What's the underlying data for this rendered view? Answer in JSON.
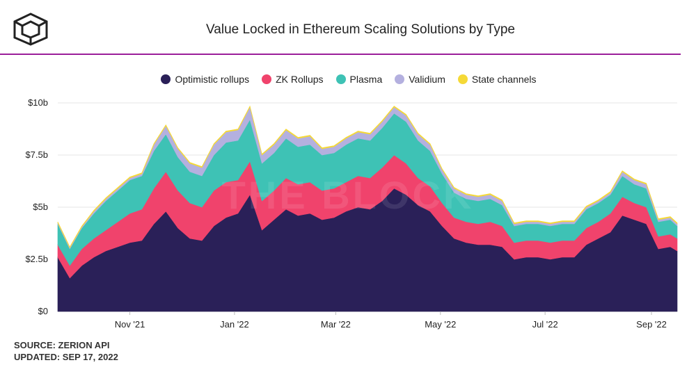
{
  "header": {
    "title": "Value Locked in Ethereum Scaling Solutions by Type",
    "logo_icon": "cube-logo-icon"
  },
  "colors": {
    "accent_rule": "#9b1e9a",
    "grid": "#e6e6e6"
  },
  "watermark": "THE BLOCK",
  "footer": {
    "source": "SOURCE: ZERION API",
    "updated": "UPDATED: SEP 17, 2022"
  },
  "chart_data": {
    "type": "area",
    "stacked": true,
    "title": "Value Locked in Ethereum Scaling Solutions by Type",
    "xlabel": "",
    "ylabel": "",
    "x_range": [
      "2021-09-20",
      "2022-09-16"
    ],
    "ylim": [
      0,
      10
    ],
    "y_unit": "$ billions",
    "yticks": [
      0,
      2.5,
      5,
      7.5,
      10
    ],
    "ytick_labels": [
      "$0",
      "$2.5b",
      "$5b",
      "$7.5b",
      "$10b"
    ],
    "xticks": [
      "2021-11-01",
      "2022-01-01",
      "2022-03-01",
      "2022-05-01",
      "2022-07-01",
      "2022-09-01"
    ],
    "xtick_labels": [
      "Nov '21",
      "Jan '22",
      "Mar '22",
      "May '22",
      "Jul '22",
      "Sep '22"
    ],
    "grid": true,
    "legend_position": "top-center",
    "x": [
      "2021-09-20",
      "2021-09-27",
      "2021-10-04",
      "2021-10-11",
      "2021-10-18",
      "2021-10-25",
      "2021-11-01",
      "2021-11-08",
      "2021-11-15",
      "2021-11-22",
      "2021-11-29",
      "2021-12-06",
      "2021-12-13",
      "2021-12-20",
      "2021-12-27",
      "2022-01-03",
      "2022-01-10",
      "2022-01-17",
      "2022-01-24",
      "2022-01-31",
      "2022-02-07",
      "2022-02-14",
      "2022-02-21",
      "2022-02-28",
      "2022-03-07",
      "2022-03-14",
      "2022-03-21",
      "2022-03-28",
      "2022-04-04",
      "2022-04-11",
      "2022-04-18",
      "2022-04-25",
      "2022-05-02",
      "2022-05-09",
      "2022-05-16",
      "2022-05-23",
      "2022-05-30",
      "2022-06-06",
      "2022-06-13",
      "2022-06-20",
      "2022-06-27",
      "2022-07-04",
      "2022-07-11",
      "2022-07-18",
      "2022-07-25",
      "2022-08-01",
      "2022-08-08",
      "2022-08-15",
      "2022-08-22",
      "2022-08-29",
      "2022-09-05",
      "2022-09-12",
      "2022-09-16"
    ],
    "series": [
      {
        "name": "Optimistic rollups",
        "color": "#2a2058",
        "values": [
          2.6,
          1.6,
          2.2,
          2.6,
          2.9,
          3.1,
          3.3,
          3.4,
          4.2,
          4.8,
          4.0,
          3.5,
          3.4,
          4.1,
          4.5,
          4.7,
          5.6,
          3.9,
          4.4,
          4.9,
          4.6,
          4.7,
          4.4,
          4.5,
          4.8,
          5.0,
          4.9,
          5.3,
          5.9,
          5.6,
          5.1,
          4.8,
          4.1,
          3.5,
          3.3,
          3.2,
          3.2,
          3.1,
          2.5,
          2.6,
          2.6,
          2.5,
          2.6,
          2.6,
          3.2,
          3.5,
          3.8,
          4.6,
          4.4,
          4.2,
          3.0,
          3.1,
          2.9
        ]
      },
      {
        "name": "ZK Rollups",
        "color": "#f0436c",
        "values": [
          0.6,
          0.6,
          0.8,
          0.9,
          1.0,
          1.2,
          1.4,
          1.5,
          1.7,
          1.9,
          1.8,
          1.7,
          1.6,
          1.7,
          1.7,
          1.6,
          1.6,
          1.4,
          1.4,
          1.5,
          1.5,
          1.5,
          1.4,
          1.4,
          1.4,
          1.5,
          1.5,
          1.6,
          1.6,
          1.5,
          1.3,
          1.2,
          1.1,
          1.0,
          1.0,
          1.0,
          1.1,
          1.0,
          0.8,
          0.8,
          0.8,
          0.8,
          0.8,
          0.8,
          0.8,
          0.8,
          0.9,
          0.9,
          0.8,
          0.8,
          0.6,
          0.6,
          0.6
        ]
      },
      {
        "name": "Plasma",
        "color": "#3ec2b5",
        "values": [
          1.0,
          0.8,
          1.0,
          1.2,
          1.4,
          1.5,
          1.6,
          1.6,
          1.8,
          1.8,
          1.6,
          1.5,
          1.5,
          1.7,
          1.9,
          1.9,
          2.0,
          1.8,
          1.8,
          1.9,
          1.8,
          1.8,
          1.7,
          1.7,
          1.8,
          1.8,
          1.8,
          1.9,
          2.0,
          2.0,
          1.8,
          1.7,
          1.4,
          1.2,
          1.1,
          1.1,
          1.1,
          1.0,
          0.8,
          0.8,
          0.8,
          0.8,
          0.8,
          0.8,
          0.9,
          0.9,
          0.9,
          1.0,
          0.9,
          0.9,
          0.7,
          0.7,
          0.6
        ]
      },
      {
        "name": "Validium",
        "color": "#b4b0df",
        "values": [
          0.05,
          0.05,
          0.05,
          0.1,
          0.1,
          0.1,
          0.1,
          0.1,
          0.3,
          0.4,
          0.4,
          0.4,
          0.4,
          0.5,
          0.5,
          0.5,
          0.6,
          0.4,
          0.4,
          0.4,
          0.4,
          0.4,
          0.3,
          0.3,
          0.3,
          0.3,
          0.3,
          0.3,
          0.3,
          0.3,
          0.3,
          0.3,
          0.2,
          0.2,
          0.2,
          0.2,
          0.2,
          0.2,
          0.1,
          0.1,
          0.1,
          0.1,
          0.1,
          0.1,
          0.1,
          0.1,
          0.1,
          0.2,
          0.2,
          0.2,
          0.1,
          0.1,
          0.1
        ]
      },
      {
        "name": "State channels",
        "color": "#f5d937",
        "values": [
          0.05,
          0.05,
          0.05,
          0.05,
          0.05,
          0.05,
          0.05,
          0.05,
          0.05,
          0.05,
          0.05,
          0.05,
          0.05,
          0.05,
          0.05,
          0.05,
          0.05,
          0.05,
          0.05,
          0.05,
          0.05,
          0.05,
          0.05,
          0.05,
          0.05,
          0.05,
          0.05,
          0.05,
          0.05,
          0.05,
          0.05,
          0.05,
          0.05,
          0.05,
          0.05,
          0.05,
          0.05,
          0.05,
          0.05,
          0.05,
          0.05,
          0.05,
          0.05,
          0.05,
          0.05,
          0.05,
          0.05,
          0.05,
          0.05,
          0.05,
          0.05,
          0.05,
          0.05
        ]
      }
    ]
  }
}
